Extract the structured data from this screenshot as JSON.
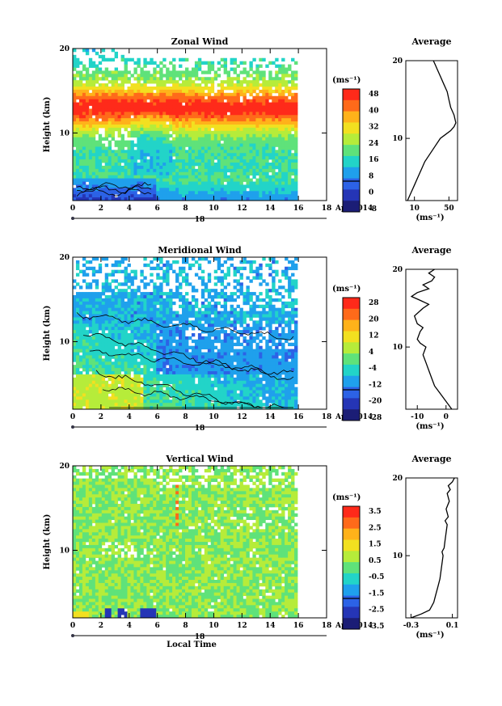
{
  "panels": [
    {
      "key": "zonal",
      "title": "Zonal Wind",
      "ylabel": "Height (km)",
      "y_ticks": [
        "20",
        "10"
      ],
      "x_ticks": [
        "0",
        "2",
        "4",
        "6",
        "8",
        "10",
        "12",
        "14",
        "16",
        "18"
      ],
      "day_label": "18",
      "date_label": "Apr 2014",
      "xlabel": "",
      "colorbar": {
        "unit": "(ms⁻¹)",
        "labels": [
          "48",
          "40",
          "32",
          "24",
          "16",
          "8",
          "0",
          "-8"
        ],
        "colors": [
          "#ff2a1a",
          "#ff6a1a",
          "#ffb21a",
          "#f2e020",
          "#b6ec3a",
          "#5fe27a",
          "#22d4c8",
          "#1fa0ec",
          "#2c62e6",
          "#2535b6",
          "#1b1d76"
        ],
        "zero_line_label": "0"
      },
      "average": {
        "title": "Average",
        "y_ticks": [
          "20",
          "10"
        ],
        "x_ticks": [
          "10",
          "50"
        ],
        "unit": "(ms⁻¹)"
      }
    },
    {
      "key": "meridional",
      "title": "Meridional Wind",
      "ylabel": "Height (km)",
      "y_ticks": [
        "20",
        "10"
      ],
      "x_ticks": [
        "0",
        "2",
        "4",
        "6",
        "8",
        "10",
        "12",
        "14",
        "16",
        "18"
      ],
      "day_label": "18",
      "date_label": "Apr 2014",
      "xlabel": "",
      "colorbar": {
        "unit": "(ms⁻¹)",
        "labels": [
          "28",
          "20",
          "12",
          "4",
          "-4",
          "-12",
          "-20",
          "-28"
        ],
        "colors": [
          "#ff2a1a",
          "#ff6a1a",
          "#ffb21a",
          "#f2e020",
          "#b6ec3a",
          "#5fe27a",
          "#22d4c8",
          "#1fa0ec",
          "#2c62e6",
          "#2535b6",
          "#1b1d76"
        ],
        "zero_line_label": "0"
      },
      "average": {
        "title": "Average",
        "y_ticks": [
          "20",
          "10"
        ],
        "x_ticks": [
          "-10",
          "0"
        ],
        "unit": "(ms⁻¹)"
      }
    },
    {
      "key": "vertical",
      "title": "Vertical Wind",
      "ylabel": "Height (km)",
      "y_ticks": [
        "20",
        "10"
      ],
      "x_ticks": [
        "0",
        "2",
        "4",
        "6",
        "8",
        "10",
        "12",
        "14",
        "16",
        "18"
      ],
      "day_label": "18",
      "date_label": "Apr 2014",
      "xlabel": "Local Time",
      "colorbar": {
        "unit": "(ms⁻¹)",
        "labels": [
          "3.5",
          "2.5",
          "1.5",
          "0.5",
          "-0.5",
          "-1.5",
          "-2.5",
          "-3.5"
        ],
        "colors": [
          "#ff2a1a",
          "#ff6a1a",
          "#ffb21a",
          "#f2e020",
          "#b6ec3a",
          "#5fe27a",
          "#22d4c8",
          "#1fa0ec",
          "#2c62e6",
          "#2535b6",
          "#1b1d76"
        ],
        "zero_line_label": "0"
      },
      "average": {
        "title": "Average",
        "y_ticks": [
          "20",
          "10"
        ],
        "x_ticks": [
          "-0.3",
          "0.1"
        ],
        "unit": "(ms⁻¹)"
      }
    }
  ],
  "chart_data": [
    {
      "type": "heatmap",
      "title": "Zonal Wind",
      "xlabel": "",
      "ylabel": "Height (km)",
      "x_range": [
        0,
        18
      ],
      "y_range": [
        2,
        20
      ],
      "x_date": "18 Apr 2014",
      "data_x_extent": [
        0,
        16
      ],
      "z_unit": "ms-1",
      "z_range": [
        -8,
        48
      ],
      "description_values": {
        "jet_core_height_km": 13,
        "jet_core_speed": 48,
        "near_surface_speed_early": -4
      }
    },
    {
      "type": "line",
      "title": "Average",
      "xlabel": "(ms-1)",
      "ylabel": "",
      "xlim": [
        0,
        60
      ],
      "ylim": [
        2,
        20
      ],
      "series": [
        {
          "x": [
            2,
            6,
            10,
            14,
            18,
            22,
            28,
            34,
            40,
            46,
            52,
            56,
            58,
            56,
            52,
            50,
            48,
            44,
            40,
            36,
            34,
            32
          ],
          "y": [
            2,
            3,
            4,
            5,
            6,
            7,
            8,
            9,
            10,
            10.5,
            11,
            11.5,
            12,
            13,
            14,
            15,
            16,
            17,
            18,
            19,
            19.5,
            20
          ]
        }
      ]
    },
    {
      "type": "heatmap",
      "title": "Meridional Wind",
      "xlabel": "",
      "ylabel": "Height (km)",
      "x_range": [
        0,
        18
      ],
      "y_range": [
        2,
        20
      ],
      "x_date": "18 Apr 2014",
      "data_x_extent": [
        0,
        16
      ],
      "z_unit": "ms-1",
      "z_range": [
        -28,
        28
      ]
    },
    {
      "type": "line",
      "title": "Average",
      "xlabel": "(ms-1)",
      "ylabel": "",
      "xlim": [
        -14,
        4
      ],
      "ylim": [
        2,
        20
      ],
      "series": [
        {
          "x": [
            2,
            0,
            -2,
            -4,
            -5,
            -6,
            -7,
            -8,
            -7,
            -9,
            -10,
            -9,
            -8,
            -10,
            -11,
            -8,
            -6,
            -9,
            -12,
            -10,
            -6,
            -8,
            -5,
            -4,
            -6,
            -4
          ],
          "y": [
            2,
            3,
            4,
            5,
            6,
            7,
            8,
            9,
            10,
            10.5,
            11,
            12,
            12.5,
            13,
            14,
            15,
            15.5,
            16,
            16.5,
            17,
            17.5,
            18,
            18.5,
            19,
            19.5,
            20
          ]
        }
      ]
    },
    {
      "type": "heatmap",
      "title": "Vertical Wind",
      "xlabel": "Local Time",
      "ylabel": "Height (km)",
      "x_range": [
        0,
        18
      ],
      "y_range": [
        2,
        20
      ],
      "x_date": "18 Apr 2014",
      "data_x_extent": [
        0,
        16
      ],
      "z_unit": "ms-1",
      "z_range": [
        -3.5,
        3.5
      ]
    },
    {
      "type": "line",
      "title": "Average",
      "xlabel": "(ms-1)",
      "ylabel": "",
      "xlim": [
        -0.35,
        0.15
      ],
      "ylim": [
        2,
        20
      ],
      "series": [
        {
          "x": [
            -0.3,
            -0.2,
            -0.12,
            -0.08,
            -0.06,
            -0.04,
            -0.02,
            -0.01,
            0.0,
            0.01,
            0.0,
            0.02,
            0.03,
            0.04,
            0.05,
            0.03,
            0.06,
            0.04,
            0.07,
            0.05,
            0.08,
            0.06,
            0.1,
            0.12
          ],
          "y": [
            2,
            2.5,
            3,
            4,
            5,
            6,
            7,
            8,
            9,
            10,
            10.5,
            11,
            12,
            13,
            14,
            14.5,
            15,
            16,
            17,
            18,
            18.5,
            19,
            19.5,
            20
          ]
        }
      ]
    }
  ]
}
